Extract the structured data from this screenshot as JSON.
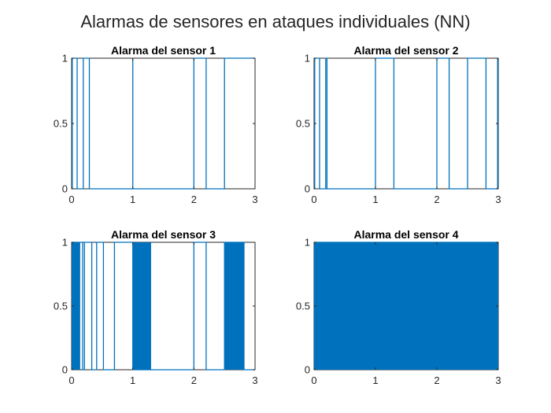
{
  "figure_title": "Alarmas de sensores en ataques individuales (NN)",
  "line_color": "#0072BD",
  "chart_data": [
    {
      "type": "line",
      "title": "Alarma del sensor 1",
      "xlim": [
        0,
        3
      ],
      "ylim": [
        0,
        1
      ],
      "xticks": [
        "0",
        "1",
        "2",
        "3"
      ],
      "yticks": [
        "0",
        "0.5",
        "1"
      ],
      "series": [
        {
          "x": [
            0,
            0.01,
            0.01,
            0.09,
            0.09,
            0.19,
            0.19,
            0.29,
            0.29,
            1.0,
            1.0,
            1.0,
            2.0,
            2.0,
            2.2,
            2.2,
            2.5,
            2.5,
            2.5,
            3.0
          ],
          "y": [
            0,
            0,
            1,
            1,
            0,
            0,
            1,
            1,
            0,
            0,
            1,
            0,
            0,
            1,
            1,
            0,
            0,
            1,
            1,
            1
          ]
        }
      ]
    },
    {
      "type": "line",
      "title": "Alarma del sensor 2",
      "xlim": [
        0,
        3
      ],
      "ylim": [
        0,
        1
      ],
      "xticks": [
        "0",
        "1",
        "2",
        "3"
      ],
      "yticks": [
        "0",
        "0.5",
        "1"
      ],
      "series": [
        {
          "x": [
            0,
            0.01,
            0.01,
            0.09,
            0.09,
            0.19,
            0.19,
            0.21,
            0.21,
            1.0,
            1.0,
            1.3,
            1.3,
            2.0,
            2.0,
            2.2,
            2.2,
            2.5,
            2.5,
            2.8,
            2.8,
            2.99,
            2.99,
            3.0
          ],
          "y": [
            0,
            0,
            1,
            1,
            0,
            0,
            1,
            1,
            0,
            0,
            1,
            1,
            0,
            0,
            1,
            1,
            0,
            0,
            1,
            1,
            0,
            0,
            1,
            1
          ]
        }
      ]
    },
    {
      "type": "line",
      "title": "Alarma del sensor 3",
      "xlim": [
        0,
        3
      ],
      "ylim": [
        0,
        1
      ],
      "xticks": [
        "0",
        "1",
        "2",
        "3"
      ],
      "yticks": [
        "0",
        "0.5",
        "1"
      ],
      "series": [
        {
          "x": [
            0,
            0.18,
            0.18,
            0.21,
            0.21,
            0.33,
            0.33,
            0.41,
            0.41,
            0.52,
            0.52,
            0.7,
            0.7,
            1.0,
            1.0,
            2.0,
            2.0,
            2.2,
            2.2,
            2.5,
            2.5,
            2.82,
            2.82,
            3.0
          ],
          "y": [
            1,
            1,
            0,
            0,
            1,
            1,
            0,
            0,
            1,
            1,
            0,
            0,
            1,
            1,
            0,
            0,
            1,
            1,
            0,
            0,
            1,
            1,
            0,
            0
          ]
        }
      ],
      "oscillating_bands": [
        [
          0.0,
          0.14
        ],
        [
          1.0,
          1.3
        ],
        [
          2.5,
          2.82
        ]
      ]
    },
    {
      "type": "line",
      "title": "Alarma del sensor 4",
      "xlim": [
        0,
        3
      ],
      "ylim": [
        0,
        1
      ],
      "xticks": [
        "0",
        "1",
        "2",
        "3"
      ],
      "yticks": [
        "0",
        "0.5",
        "1"
      ],
      "series": [
        {
          "x": [
            0,
            3.0
          ],
          "y": [
            1,
            1
          ]
        }
      ],
      "oscillating_bands": [
        [
          0.0,
          3.0
        ]
      ]
    }
  ]
}
